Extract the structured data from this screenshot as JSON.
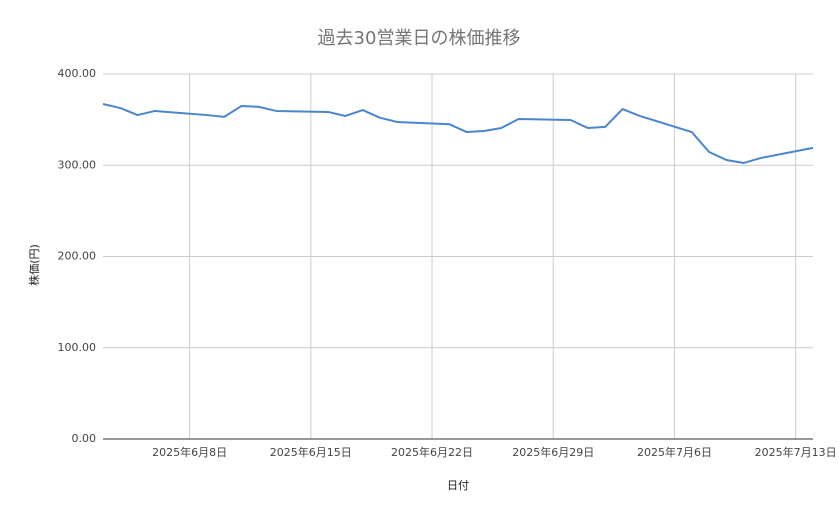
{
  "chart_data": {
    "type": "line",
    "title": "過去30営業日の株価推移",
    "x_label": "日付",
    "y_label": "株価(円)",
    "x": [
      "2025-06-03",
      "2025-06-04",
      "2025-06-05",
      "2025-06-06",
      "2025-06-09",
      "2025-06-10",
      "2025-06-11",
      "2025-06-12",
      "2025-06-13",
      "2025-06-16",
      "2025-06-17",
      "2025-06-18",
      "2025-06-19",
      "2025-06-20",
      "2025-06-23",
      "2025-06-24",
      "2025-06-25",
      "2025-06-26",
      "2025-06-27",
      "2025-06-30",
      "2025-07-01",
      "2025-07-02",
      "2025-07-03",
      "2025-07-04",
      "2025-07-07",
      "2025-07-08",
      "2025-07-09",
      "2025-07-10",
      "2025-07-11",
      "2025-07-14"
    ],
    "values": [
      367.1,
      362.7,
      355,
      359.5,
      355,
      353,
      365,
      364,
      359.5,
      358.4,
      354,
      360.5,
      352,
      347.4,
      345,
      336.4,
      337.5,
      340.8,
      350.7,
      349.6,
      340.8,
      342,
      361.6,
      354,
      336.4,
      314.5,
      305.8,
      302.5,
      308,
      319
    ],
    "color": "#4a86d0",
    "xlim": [
      "2025-06-03",
      "2025-07-14"
    ],
    "xticks": [
      {
        "value": "2025-06-08",
        "label": "2025年6月8日"
      },
      {
        "value": "2025-06-15",
        "label": "2025年6月15日"
      },
      {
        "value": "2025-06-22",
        "label": "2025年6月22日"
      },
      {
        "value": "2025-06-29",
        "label": "2025年6月29日"
      },
      {
        "value": "2025-07-06",
        "label": "2025年7月6日"
      },
      {
        "value": "2025-07-13",
        "label": "2025年7月13日"
      }
    ],
    "ylim": [
      0,
      400
    ],
    "yticks": [
      {
        "value": 0,
        "label": "0.00"
      },
      {
        "value": 100,
        "label": "100.00"
      },
      {
        "value": 200,
        "label": "200.00"
      },
      {
        "value": 300,
        "label": "300.00"
      },
      {
        "value": 400,
        "label": "400.00"
      }
    ],
    "grid": true
  }
}
